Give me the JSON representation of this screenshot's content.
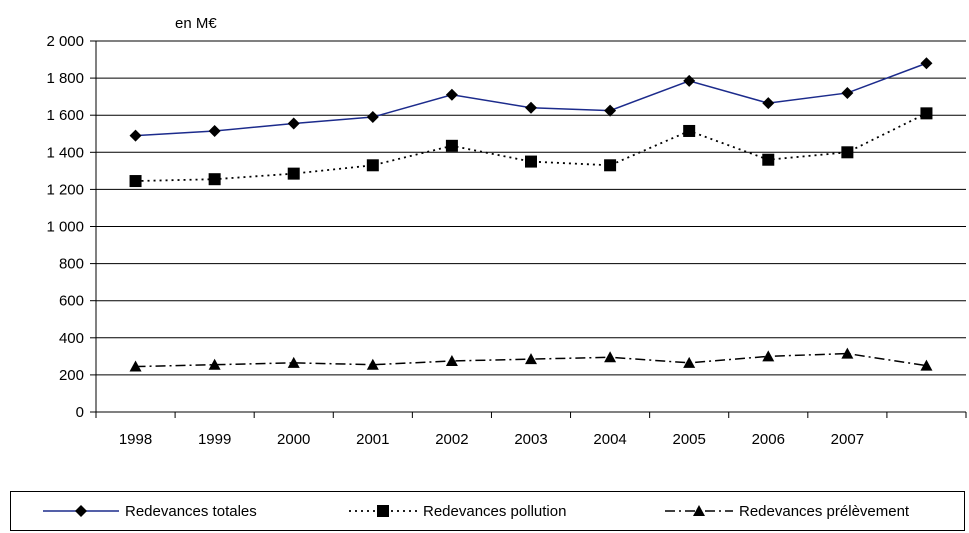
{
  "chart_data": {
    "type": "line",
    "unit_label": "en M€",
    "categories": [
      "1998",
      "1999",
      "2000",
      "2001",
      "2002",
      "2003",
      "2004",
      "2005",
      "2006",
      "2007",
      ""
    ],
    "ylim": [
      0,
      2000
    ],
    "yticks": [
      0,
      200,
      400,
      600,
      800,
      1000,
      1200,
      1400,
      1600,
      1800,
      2000
    ],
    "ytick_labels": [
      "0",
      "200",
      "400",
      "600",
      "800",
      "1 000",
      "1 200",
      "1 400",
      "1 600",
      "1 800",
      "2 000"
    ],
    "grid": true,
    "legend_position": "bottom",
    "series": [
      {
        "name": "Redevances totales",
        "values": [
          1490,
          1515,
          1555,
          1590,
          1710,
          1640,
          1625,
          1785,
          1665,
          1720,
          1880
        ],
        "color": "#1c2b8c",
        "marker": "diamond",
        "line_style": "solid"
      },
      {
        "name": "Redevances pollution",
        "values": [
          1245,
          1255,
          1285,
          1330,
          1435,
          1350,
          1330,
          1515,
          1360,
          1400,
          1610
        ],
        "color": "#000000",
        "marker": "square",
        "line_style": "dotted"
      },
      {
        "name": "Redevances prélèvement",
        "values": [
          245,
          255,
          265,
          255,
          275,
          285,
          295,
          265,
          300,
          315,
          250
        ],
        "color": "#000000",
        "marker": "triangle",
        "line_style": "dashdot"
      }
    ]
  }
}
